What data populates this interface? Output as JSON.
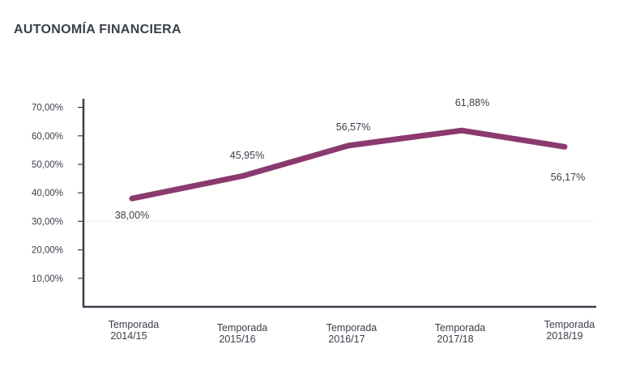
{
  "chart_data": {
    "type": "line",
    "title": "AUTONOMÍA FINANCIERA",
    "categories": [
      [
        "Temporada",
        "2014/15"
      ],
      [
        "Temporada",
        "2015/16"
      ],
      [
        "Temporada",
        "2016/17"
      ],
      [
        "Temporada",
        "2017/18"
      ],
      [
        "Temporada",
        "2018/19"
      ]
    ],
    "values": [
      38.0,
      45.95,
      56.57,
      61.88,
      56.17
    ],
    "data_labels": [
      "38,00%",
      "45,95%",
      "56,57%",
      "61,88%",
      "56,17%"
    ],
    "y_ticks": [
      "10,00%",
      "20,00%",
      "30,00%",
      "40,00%",
      "50,00%",
      "60,00%",
      "70,00%"
    ],
    "y_tick_values": [
      10,
      20,
      30,
      40,
      50,
      60,
      70
    ],
    "ylim": [
      0,
      70
    ],
    "grid": "faint line at 30%",
    "colors": {
      "line": "#8b3a6f",
      "axis": "#3a3f4a",
      "text": "#3a3f4a"
    }
  }
}
